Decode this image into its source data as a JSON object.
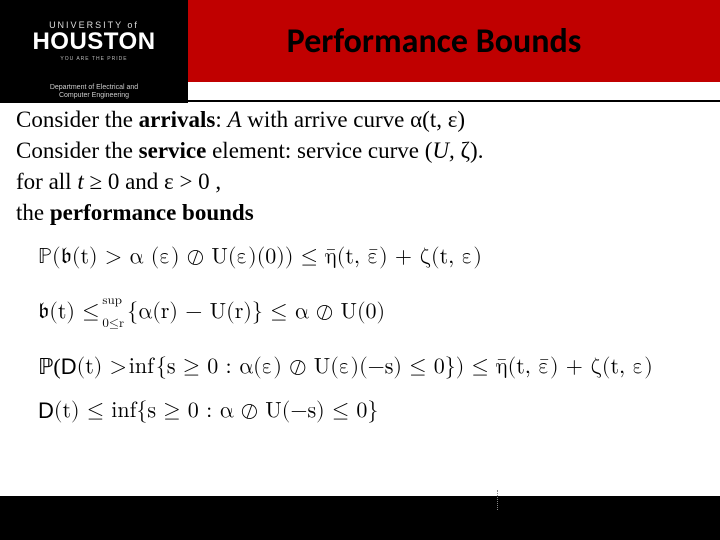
{
  "header": {
    "logo_line1": "UNIVERSITY of",
    "logo_line2": "HOUSTON",
    "logo_tagline": "YOU ARE THE PRIDE",
    "dept_line1": "Department of Electrical and",
    "dept_line2": "Computer Engineering",
    "title": "Performance Bounds"
  },
  "lines": {
    "l1a": "Consider the ",
    "l1b": "arrivals",
    "l1c": ":  ",
    "l1d": "A",
    "l1e": " with arrive curve α(t, ε)",
    "l2a": "Consider the ",
    "l2b": "service",
    "l2c": " element: service curve (",
    "l2d": "U, ",
    "l2e": "ζ).",
    "l3a": "for all ",
    "l3b": "t ",
    "l3c": "≥ 0 and ε > 0 ,",
    "l4": " the ",
    "l4b": "performance bounds"
  },
  "eq": {
    "e1": "ℙ(𝔟(t) > α (ε) ⊘ U(ε)(0)) ≤ η̄(t, ε̄) + ζ(t, ε)",
    "e2a": "𝔟(t) ≤ ",
    "e2_sup": "sup",
    "e2_sub": "0≤r",
    "e2b": "{α(r) − U(r)} ≤ α ⊘ U(0)",
    "e3a": "ℙ(",
    "e3b": "D",
    "e3c": "(t) > ",
    "e3_inf": "inf",
    "e3d": "{s ≥ 0 : α(ε) ⊘ U(ε)(−s) ≤ 0}) ≤ η̄(t, ε̄) + ζ(t, ε)",
    "e4a": "D",
    "e4b": "(t) ≤ inf{s ≥ 0 : α ⊘ U(−s) ≤ 0}"
  },
  "colors": {
    "header_bg": "#c00000",
    "logo_bg": "#000000",
    "footer_bg": "#000000",
    "text": "#000000"
  }
}
